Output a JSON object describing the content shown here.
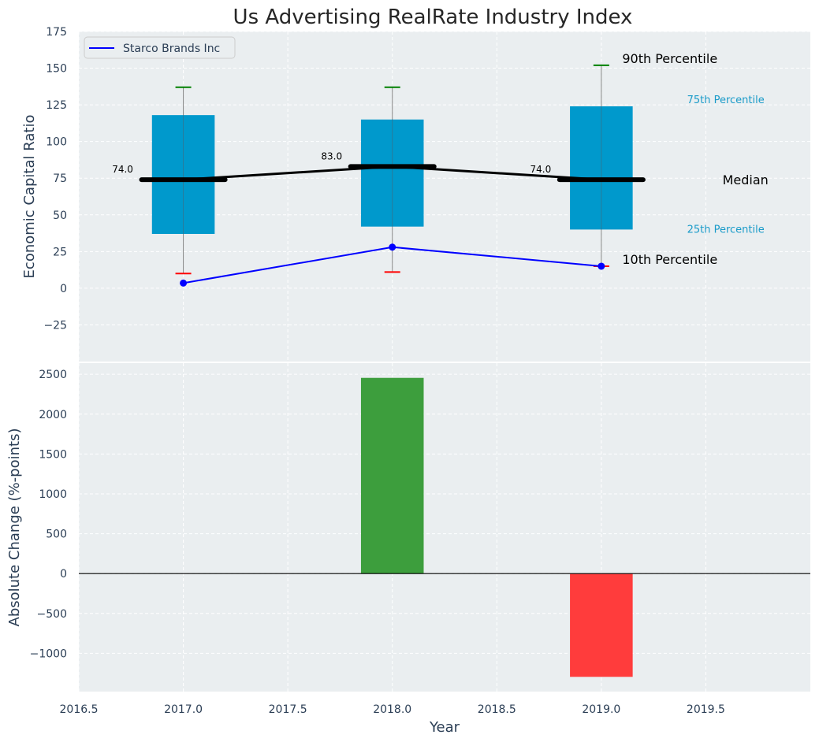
{
  "title": "Us Advertising RealRate Industry Index",
  "legend": {
    "label": "Starco Brands Inc"
  },
  "colors": {
    "box": "#0099cc",
    "whisker_high": "#008000",
    "whisker_low": "#ff0000",
    "company": "#0000ff",
    "median": "#000000",
    "positive": "#3d9e3d",
    "negative": "#ff3c3c",
    "panel_bg": "#eaeef0"
  },
  "annotations": {
    "p90": "90th Percentile",
    "p75": "75th Percentile",
    "median": "Median",
    "p25": "25th Percentile",
    "p10": "10th Percentile"
  },
  "chart_data": [
    {
      "type": "box",
      "ylabel": "Economic Capital Ratio",
      "xlim": [
        2016.5,
        2020.0
      ],
      "ylim": [
        -50,
        175
      ],
      "yticks": [
        -25,
        0,
        25,
        50,
        75,
        100,
        125,
        150,
        175
      ],
      "ytick_labels": [
        "−25",
        "0",
        "25",
        "50",
        "75",
        "100",
        "125",
        "150",
        "175"
      ],
      "years": [
        2017,
        2018,
        2019
      ],
      "p10": [
        10,
        11,
        15
      ],
      "p25": [
        37,
        42,
        40
      ],
      "median": [
        74,
        83,
        74
      ],
      "median_labels": [
        "74.0",
        "83.0",
        "74.0"
      ],
      "p75": [
        118,
        115,
        124
      ],
      "p90": [
        137,
        137,
        152
      ],
      "company": {
        "name": "Starco Brands Inc",
        "values": [
          3.5,
          28,
          15
        ]
      }
    },
    {
      "type": "bar",
      "xlabel": "Year",
      "ylabel": "Absolute Change (%-points)",
      "xlim": [
        2016.5,
        2020.0
      ],
      "ylim": [
        -1480,
        2640
      ],
      "yticks": [
        -1000,
        -500,
        0,
        500,
        1000,
        1500,
        2000,
        2500
      ],
      "ytick_labels": [
        "−1000",
        "−500",
        "0",
        "500",
        "1000",
        "1500",
        "2000",
        "2500"
      ],
      "xticks": [
        2016.5,
        2017.0,
        2017.5,
        2018.0,
        2018.5,
        2019.0,
        2019.5
      ],
      "xtick_labels": [
        "2016.5",
        "2017.0",
        "2017.5",
        "2018.0",
        "2018.5",
        "2019.0",
        "2019.5"
      ],
      "years": [
        2018,
        2019
      ],
      "values": [
        2455,
        -1295
      ]
    }
  ]
}
